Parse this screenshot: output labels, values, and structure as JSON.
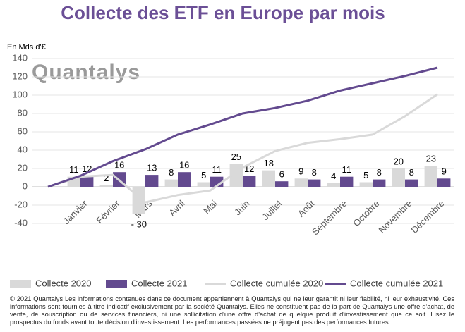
{
  "chart_data": {
    "type": "bar",
    "title": "Collecte des ETF en Europe par mois",
    "y_label": "En Mds d'€",
    "logo": "Quantalys",
    "categories": [
      null,
      "Janvier",
      "Février",
      "Mars",
      "Avril",
      "Mai",
      "Juin",
      "Juillet",
      "Août",
      "Septembre",
      "Octobre",
      "Novembre",
      "Décembre"
    ],
    "series": [
      {
        "name": "Collecte 2020",
        "type": "bar",
        "color": "#d9d9d9",
        "values": [
          null,
          11,
          2,
          -30,
          8,
          5,
          25,
          18,
          9,
          4,
          5,
          20,
          23
        ],
        "value_labels": [
          null,
          "11",
          "2",
          "- 30",
          "8",
          "5",
          "25",
          "18",
          "9",
          "4",
          "5",
          "20",
          "23"
        ]
      },
      {
        "name": "Collecte 2021",
        "type": "bar",
        "color": "#634a8f",
        "values": [
          null,
          12,
          16,
          13,
          16,
          11,
          12,
          6,
          8,
          11,
          8,
          8,
          9
        ]
      },
      {
        "name": "Collecte cumulée 2020",
        "type": "line",
        "color": "#d9d9d9",
        "values": [
          0,
          11,
          13,
          -17,
          -9,
          -4,
          21,
          39,
          48,
          52,
          57,
          77,
          101
        ]
      },
      {
        "name": "Collecte cumulée 2021",
        "type": "line",
        "color": "#634a8f",
        "values": [
          0,
          12,
          28,
          41,
          57,
          68,
          80,
          86,
          94,
          105,
          113,
          121,
          130
        ]
      }
    ],
    "ylim": [
      -40,
      140
    ],
    "yticks": [
      -40,
      -20,
      0,
      20,
      40,
      60,
      80,
      100,
      120,
      140
    ],
    "grid": true,
    "legend": "bottom",
    "footnote": "© 2021 Quantalys Les informations contenues dans ce document appartiennent à Quantalys qui ne leur garantit ni leur fiabilité, ni leur exhaustivité. Ces informations sont fournies à titre indicatif exclusivement par la société Quantalys. Elles ne constituent pas de la part de Quantalys une offre d'achat, de vente, de souscription ou de services financiers, ni une sollicitation d'une offre d'achat de quelque produit d'investissement que ce soit. Lisez le prospectus du fonds avant toute décision d'investissement. Les performances passées ne préjugent pas des performances futures."
  }
}
